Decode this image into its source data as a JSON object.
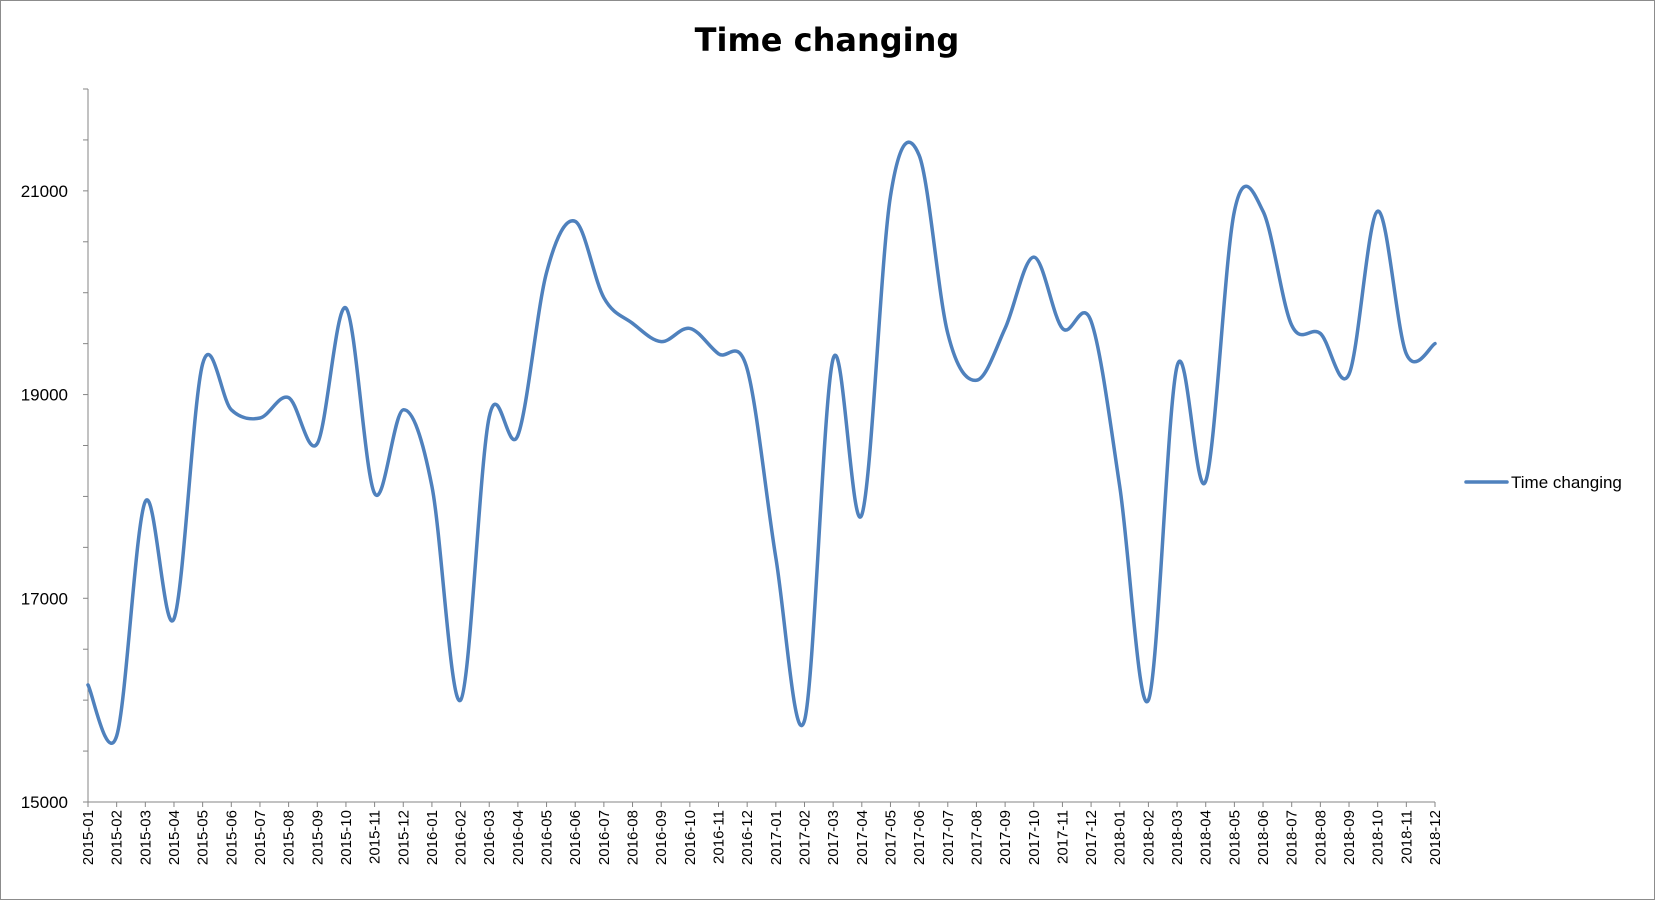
{
  "chart_data": {
    "type": "line",
    "title": "Time changing",
    "xlabel": "",
    "ylabel": "",
    "ylim": [
      15000,
      22000
    ],
    "yticks": [
      "15000",
      "17000",
      "19000",
      "21000"
    ],
    "grid": false,
    "legend_position": "right",
    "categories": [
      "2015-01",
      "2015-02",
      "2015-03",
      "2015-04",
      "2015-05",
      "2015-06",
      "2015-07",
      "2015-08",
      "2015-09",
      "2015-10",
      "2015-11",
      "2015-12",
      "2016-01",
      "2016-02",
      "2016-03",
      "2016-04",
      "2016-05",
      "2016-06",
      "2016-07",
      "2016-08",
      "2016-09",
      "2016-10",
      "2016-11",
      "2016-12",
      "2017-01",
      "2017-02",
      "2017-03",
      "2017-04",
      "2017-05",
      "2017-06",
      "2017-07",
      "2017-08",
      "2017-09",
      "2017-10",
      "2017-11",
      "2017-12",
      "2018-01",
      "2018-02",
      "2018-03",
      "2018-04",
      "2018-05",
      "2018-06",
      "2018-07",
      "2018-08",
      "2018-09",
      "2018-10",
      "2018-11",
      "2018-12"
    ],
    "series": [
      {
        "name": "Time changing",
        "color": "#4f81bd",
        "values": [
          16150,
          15650,
          17950,
          16800,
          19300,
          18850,
          18770,
          18970,
          18520,
          19850,
          18030,
          18850,
          18100,
          16000,
          18780,
          18600,
          20200,
          20700,
          19950,
          19700,
          19520,
          19650,
          19400,
          19250,
          17400,
          15800,
          19350,
          17820,
          20950,
          21350,
          19600,
          19140,
          19650,
          20350,
          19650,
          19720,
          18100,
          16000,
          19280,
          18150,
          20800,
          20800,
          19680,
          19600,
          19200,
          20800,
          19400,
          19500
        ]
      }
    ]
  }
}
